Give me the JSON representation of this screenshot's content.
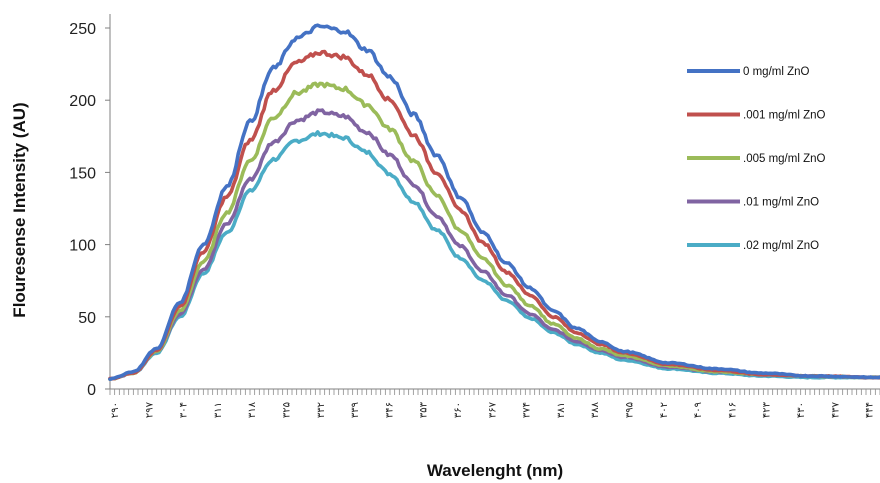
{
  "chart_data": {
    "type": "line",
    "ylabel": "Flouresense Intensity (AU)",
    "xlabel": "Wavelenght (nm)",
    "ylim": [
      0,
      250
    ],
    "yticks": [
      0,
      50,
      100,
      150,
      200,
      250
    ],
    "xlim": [
      290,
      455
    ],
    "x_tick_labels": [
      "۲۹۰",
      "۲۹۷",
      "۳۰۴",
      "۳۱۱",
      "۳۱۸",
      "۳۲۵",
      "۳۳۲",
      "۳۳۹",
      "۳۴۶",
      "۳۵۳",
      "۳۶۰",
      "۳۶۷",
      "۳۷۴",
      "۳۸۱",
      "۳۸۸",
      "۳۹۵",
      "۴۰۲",
      "۴۰۹",
      "۴۱۶",
      "۴۲۳",
      "۴۳۰",
      "۴۳۷",
      "۴۴۴"
    ],
    "grid": false,
    "legend": "right",
    "series": [
      {
        "name": "0 mg/ml ZnO",
        "color": "#4472C4",
        "x": [
          290,
          295,
          300,
          305,
          310,
          315,
          320,
          325,
          330,
          335,
          340,
          345,
          350,
          355,
          360,
          365,
          370,
          375,
          380,
          385,
          390,
          395,
          400,
          410,
          420,
          430,
          440,
          455
        ],
        "values": [
          7,
          12,
          28,
          60,
          100,
          140,
          185,
          222,
          243,
          251,
          248,
          235,
          216,
          190,
          162,
          133,
          108,
          87,
          70,
          54,
          42,
          33,
          26,
          18,
          14,
          11,
          9,
          8
        ]
      },
      {
        "name": ".001 mg/ml ZnO",
        "color": "#C0504D",
        "x": [
          290,
          295,
          300,
          305,
          310,
          315,
          320,
          325,
          330,
          335,
          340,
          345,
          350,
          355,
          360,
          365,
          370,
          375,
          380,
          385,
          390,
          395,
          400,
          410,
          420,
          430,
          440,
          455
        ],
        "values": [
          7,
          11,
          27,
          57,
          95,
          133,
          172,
          207,
          226,
          233,
          230,
          218,
          200,
          176,
          150,
          124,
          101,
          81,
          65,
          50,
          39,
          31,
          25,
          17,
          13,
          10,
          9,
          8
        ]
      },
      {
        "name": ".005 mg/ml ZnO",
        "color": "#9BBB59",
        "x": [
          290,
          295,
          300,
          305,
          310,
          315,
          320,
          325,
          330,
          335,
          340,
          345,
          350,
          355,
          360,
          365,
          370,
          375,
          380,
          385,
          390,
          395,
          400,
          410,
          420,
          430,
          440,
          455
        ],
        "values": [
          7,
          11,
          26,
          54,
          88,
          122,
          158,
          188,
          205,
          211,
          208,
          197,
          180,
          158,
          134,
          110,
          90,
          72,
          58,
          45,
          35,
          28,
          23,
          16,
          12,
          10,
          9,
          8
        ]
      },
      {
        "name": ".01 mg/ml ZnO",
        "color": "#8064A2",
        "x": [
          290,
          295,
          300,
          305,
          310,
          315,
          320,
          325,
          330,
          335,
          340,
          345,
          350,
          355,
          360,
          365,
          370,
          375,
          380,
          385,
          390,
          395,
          400,
          410,
          420,
          430,
          440,
          455
        ],
        "values": [
          7,
          11,
          26,
          52,
          83,
          114,
          145,
          171,
          186,
          192,
          189,
          178,
          162,
          142,
          120,
          99,
          81,
          65,
          52,
          41,
          33,
          27,
          22,
          15,
          12,
          10,
          9,
          8
        ]
      },
      {
        "name": ".02 mg/ml ZnO",
        "color": "#4BACC6",
        "x": [
          290,
          295,
          300,
          305,
          310,
          315,
          320,
          325,
          330,
          335,
          340,
          345,
          350,
          355,
          360,
          365,
          370,
          375,
          380,
          385,
          390,
          395,
          400,
          410,
          420,
          430,
          440,
          455
        ],
        "values": [
          7,
          11,
          25,
          50,
          80,
          108,
          137,
          159,
          172,
          177,
          174,
          164,
          149,
          130,
          110,
          91,
          75,
          61,
          49,
          39,
          31,
          25,
          20,
          14,
          11,
          9,
          8,
          8
        ]
      }
    ]
  }
}
